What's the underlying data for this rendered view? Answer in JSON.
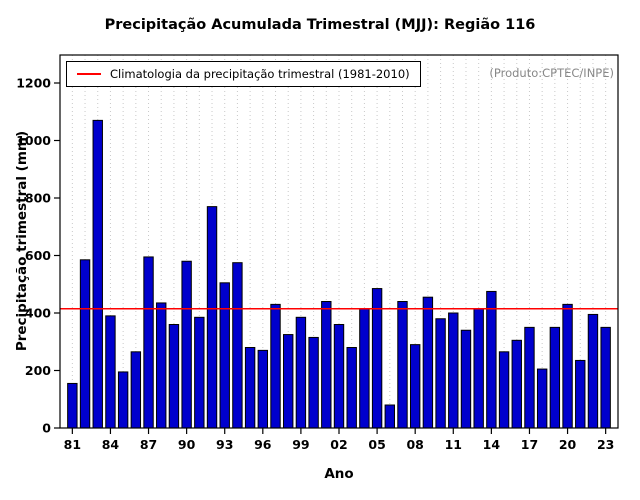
{
  "chart_data": {
    "type": "bar",
    "title": "Precipitação Acumulada Trimestral (MJJ): Região 116",
    "xlabel": "Ano",
    "ylabel": "Precipitação trimestral (mm)",
    "legend_label": "Climatologia da precipitação trimestral (1981-2010)",
    "annotation": "(Produto:CPTEC/INPE)",
    "years": [
      1981,
      1982,
      1983,
      1984,
      1985,
      1986,
      1987,
      1988,
      1989,
      1990,
      1991,
      1992,
      1993,
      1994,
      1995,
      1996,
      1997,
      1998,
      1999,
      2000,
      2001,
      2002,
      2003,
      2004,
      2005,
      2006,
      2007,
      2008,
      2009,
      2010,
      2011,
      2012,
      2013,
      2014,
      2015,
      2016,
      2017,
      2018,
      2019,
      2020,
      2021,
      2022,
      2023
    ],
    "values": [
      155,
      585,
      1070,
      390,
      195,
      265,
      595,
      435,
      360,
      580,
      385,
      770,
      505,
      575,
      280,
      270,
      430,
      325,
      385,
      315,
      440,
      360,
      280,
      415,
      485,
      80,
      440,
      290,
      455,
      380,
      400,
      340,
      415,
      475,
      265,
      305,
      350,
      205,
      350,
      430,
      235,
      395,
      350
    ],
    "climatology": 415,
    "ylim": [
      0,
      1200
    ],
    "y_ticks": [
      0,
      200,
      400,
      600,
      800,
      1000,
      1200
    ],
    "x_tick_labels": [
      "81",
      "84",
      "87",
      "90",
      "93",
      "96",
      "99",
      "02",
      "05",
      "08",
      "11",
      "14",
      "17",
      "20",
      "23"
    ],
    "x_tick_indices": [
      0,
      3,
      6,
      9,
      12,
      15,
      18,
      21,
      24,
      27,
      30,
      33,
      36,
      39,
      42
    ],
    "grid": true,
    "legend_position": "top-left",
    "colors": {
      "bar": "#0000CD",
      "bar_border": "#000000",
      "climatology_line": "#FF0000",
      "grid": "#C9C9C9",
      "annotation": "#888888"
    }
  }
}
